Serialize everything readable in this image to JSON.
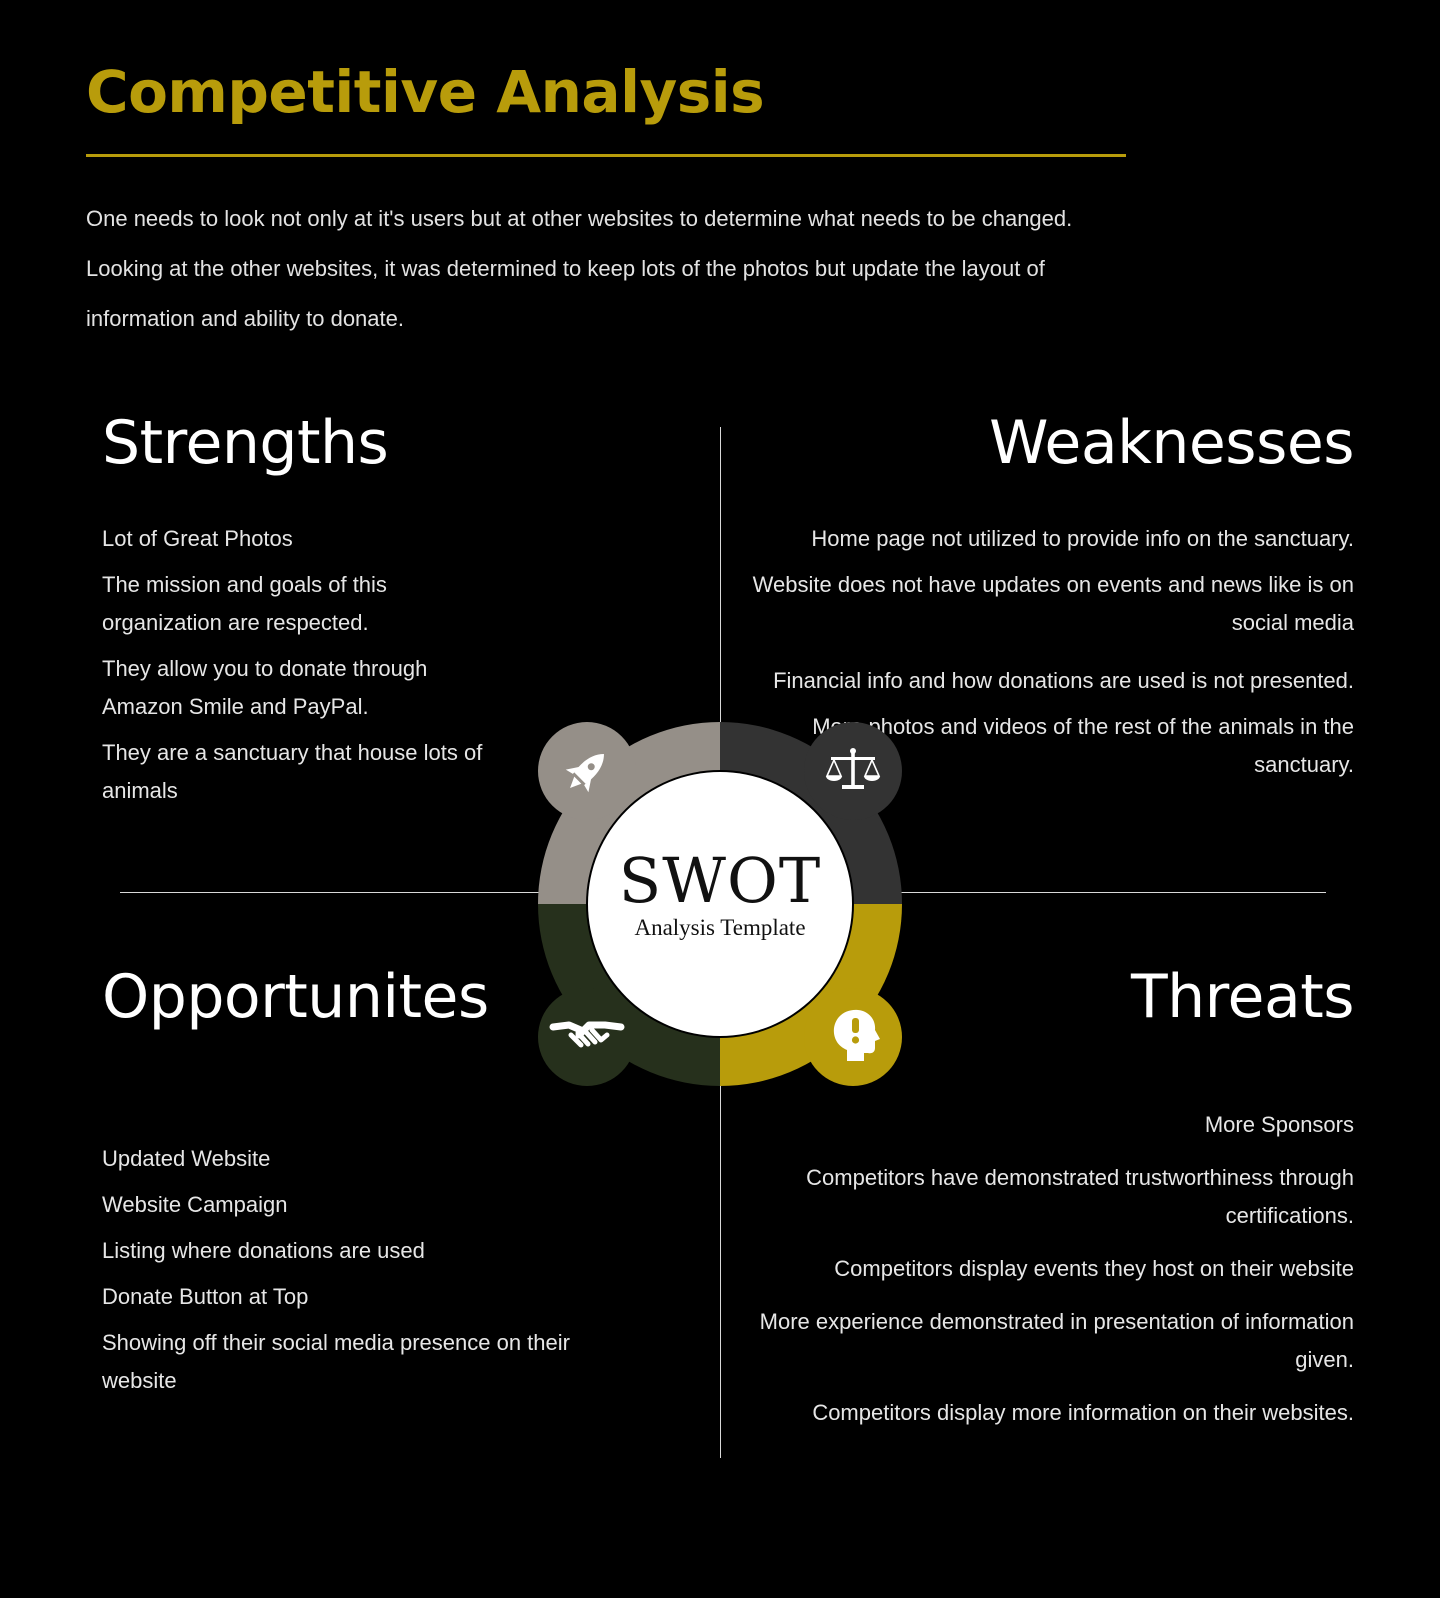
{
  "header": {
    "title": "Competitive Analysis",
    "intro_lines": [
      "One needs to look not only at it's users but at other websites to determine what needs to be changed.",
      "Looking at the other websites, it was determined to keep lots of the photos but update the layout of",
      "information and ability to donate."
    ]
  },
  "colors": {
    "accent": "#b89c0b",
    "strengths": "#958f88",
    "weaknesses": "#333333",
    "opportunities": "#26301c",
    "threats": "#b89c0b",
    "background": "#000000"
  },
  "diagram": {
    "word": "SWOT",
    "subtitle": "Analysis Template",
    "icons": {
      "strengths": "rocket-icon",
      "weaknesses": "scales-icon",
      "opportunities": "handshake-icon",
      "threats": "alert-head-icon"
    }
  },
  "strengths": {
    "heading": "Strengths",
    "items": [
      "Lot of Great Photos",
      "The mission and goals of this organization are respected.",
      "They allow you to donate through Amazon Smile and PayPal.",
      "They are a sanctuary that house lots of animals"
    ]
  },
  "weaknesses": {
    "heading": "Weaknesses",
    "items": [
      "Home page not utilized to provide info on the sanctuary.",
      "Website does not have updates on events and news like is on social media",
      "Financial info and how donations are used is not presented.",
      "More photos and videos of the rest of the animals in the sanctuary."
    ]
  },
  "opportunities": {
    "heading": "Opportunites",
    "items": [
      "Updated Website",
      "Website Campaign",
      "Listing where donations are used",
      "Donate Button at Top",
      "Showing off their social media presence on their website"
    ]
  },
  "threats": {
    "heading": "Threats",
    "items": [
      "More Sponsors",
      "Competitors have demonstrated trustworthiness through certifications.",
      "Competitors display events they host on their website",
      "More experience demonstrated in presentation of information given.",
      "Competitors display more information on their websites."
    ]
  }
}
